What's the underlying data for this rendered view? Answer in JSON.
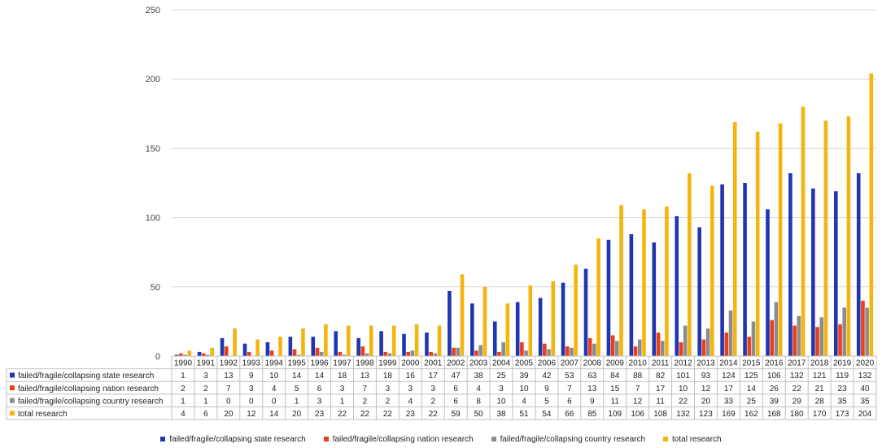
{
  "chart_data": {
    "type": "bar",
    "title": "",
    "xlabel": "",
    "ylabel": "",
    "ylim": [
      0,
      250
    ],
    "yticks": [
      0,
      50,
      100,
      150,
      200,
      250
    ],
    "grid": true,
    "legend_position": "bottom",
    "categories": [
      "1990",
      "1991",
      "1992",
      "1993",
      "1994",
      "1995",
      "1996",
      "1997",
      "1998",
      "1999",
      "2000",
      "2001",
      "2002",
      "2003",
      "2004",
      "2005",
      "2006",
      "2007",
      "2008",
      "2009",
      "2010",
      "2011",
      "2012",
      "2013",
      "2014",
      "2015",
      "2016",
      "2017",
      "2018",
      "2019",
      "2020"
    ],
    "series": [
      {
        "name": "failed/fragile/collapsing state research",
        "color": "#1f36b0",
        "values": [
          1,
          3,
          13,
          9,
          10,
          14,
          14,
          18,
          13,
          18,
          16,
          17,
          47,
          38,
          25,
          39,
          42,
          53,
          63,
          84,
          88,
          82,
          101,
          93,
          124,
          125,
          106,
          132,
          121,
          119,
          132
        ]
      },
      {
        "name": "failed/fragile/collapsing nation research",
        "color": "#e8401c",
        "values": [
          2,
          2,
          7,
          3,
          4,
          5,
          6,
          3,
          7,
          3,
          3,
          3,
          6,
          4,
          3,
          10,
          9,
          7,
          13,
          15,
          7,
          17,
          10,
          12,
          17,
          14,
          26,
          22,
          21,
          23,
          40
        ]
      },
      {
        "name": "failed/fragile/collapsing country research",
        "color": "#8c8c8c",
        "values": [
          1,
          1,
          0,
          0,
          0,
          1,
          3,
          1,
          2,
          2,
          4,
          2,
          6,
          8,
          10,
          4,
          5,
          6,
          9,
          11,
          12,
          11,
          22,
          20,
          33,
          25,
          39,
          29,
          28,
          35,
          35
        ]
      },
      {
        "name": "total research",
        "color": "#f5b50f",
        "values": [
          4,
          6,
          20,
          12,
          14,
          20,
          23,
          22,
          22,
          22,
          23,
          22,
          59,
          50,
          38,
          51,
          54,
          66,
          85,
          109,
          106,
          108,
          132,
          123,
          169,
          162,
          168,
          180,
          170,
          173,
          204
        ]
      }
    ]
  }
}
